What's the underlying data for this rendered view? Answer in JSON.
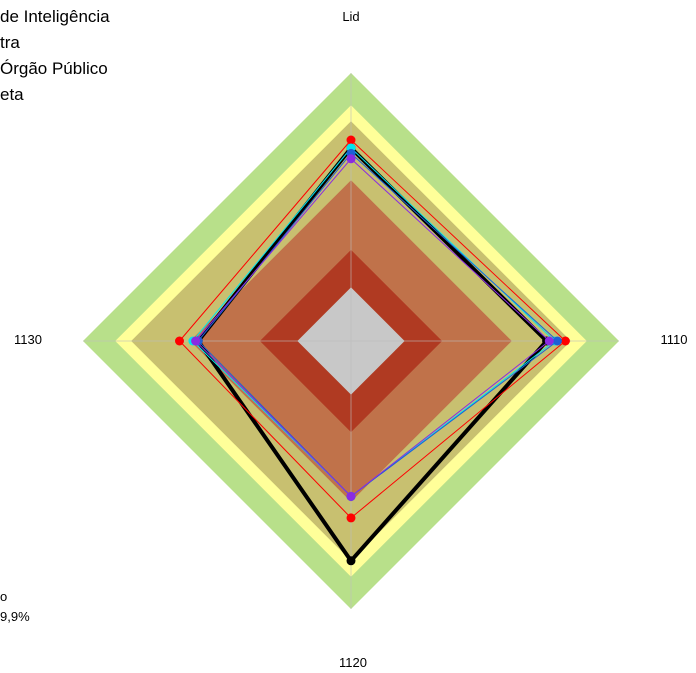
{
  "legend": {
    "lines": [
      "de Inteligência",
      "tra",
      "Órgão Público",
      "eta"
    ],
    "bottom_lines": [
      "o",
      "9,9%"
    ]
  },
  "chart_data": {
    "type": "radar",
    "axes": [
      "Lid",
      "1110",
      "1120",
      "1130"
    ],
    "rmax": 100,
    "bands": [
      {
        "to": 20,
        "color": "#c8c8c8"
      },
      {
        "to": 34,
        "color": "#b03a22"
      },
      {
        "to": 60,
        "color": "#c0724a"
      },
      {
        "to": 82,
        "color": "#c8c070"
      },
      {
        "to": 88,
        "color": "#ffff99"
      },
      {
        "to": 100,
        "color": "#b8e08a"
      }
    ],
    "series": [
      {
        "color": "#000000",
        "values": [
          72,
          73,
          82,
          57
        ],
        "line_width": 4
      },
      {
        "color": "#ff0000",
        "values": [
          75,
          80,
          66,
          64
        ],
        "line_width": 1
      },
      {
        "color": "#00e5ee",
        "values": [
          72,
          76,
          58,
          59
        ],
        "line_width": 1
      },
      {
        "color": "#1e5fd6",
        "values": [
          70,
          77,
          58,
          57
        ],
        "line_width": 1
      },
      {
        "color": "#8a2be2",
        "values": [
          68,
          74,
          58,
          58
        ],
        "line_width": 1
      }
    ]
  }
}
